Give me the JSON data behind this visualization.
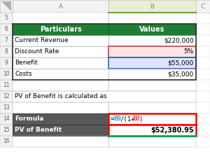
{
  "bg_color": "#ffffff",
  "header_bg": "#1e7e34",
  "header_text_color": "#ffffff",
  "header_A": "Particulars",
  "header_B": "Values",
  "row7_A": "Current Revenue",
  "row7_B": "$220,000",
  "row8_A": "Discount Rate",
  "row8_B": "5%",
  "row8_bg": "#fce4e4",
  "row9_A": "Benefit",
  "row9_B": "$55,000",
  "row9_bg": "#dce6f8",
  "row10_A": "Costs",
  "row10_B": "$35,000",
  "row12_text": "PV of Benefit is calculated as",
  "row14_A": "Formula",
  "row14_A_bg": "#595959",
  "row14_A_color": "#ffffff",
  "formula_parts": [
    {
      "text": "=",
      "color": "#000000"
    },
    {
      "text": "B9",
      "color": "#0070c0"
    },
    {
      "text": "/(1+",
      "color": "#000000"
    },
    {
      "text": "B8",
      "color": "#ff0000"
    },
    {
      "text": ")",
      "color": "#000000"
    }
  ],
  "row14_B_border_color": "#ff0000",
  "row15_A": "PV of Benefit",
  "row15_A_bg": "#595959",
  "row15_A_color": "#ffffff",
  "row15_B": "$52,380.95",
  "row15_B_border_color": "#ff0000",
  "row15_B_border_bottom_color": "#00b050",
  "grid_color": "#b0b0b0",
  "row_label_color": "#606060",
  "col_label_color": "#808080"
}
